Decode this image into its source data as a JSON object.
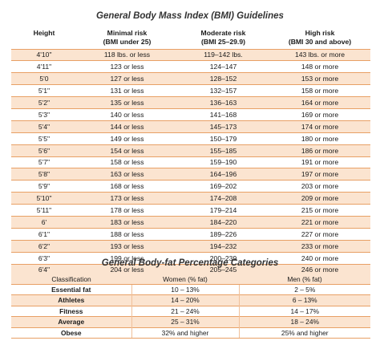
{
  "bmi": {
    "title": "General Body Mass Index (BMI) Guidelines",
    "headers": {
      "height": "Height",
      "minimal": [
        "Minimal risk",
        "(BMI under 25)"
      ],
      "moderate": [
        "Moderate risk",
        "(BMI 25–29.9)"
      ],
      "high": [
        "High risk",
        "(BMI 30 and above)"
      ]
    },
    "rows": [
      {
        "height": "4'10\"",
        "minimal": "118 lbs. or less",
        "moderate": "119–142 lbs.",
        "high": "143 lbs. or more"
      },
      {
        "height": "4'11\"",
        "minimal": "123 or less",
        "moderate": "124–147",
        "high": "148 or more"
      },
      {
        "height": "5'0",
        "minimal": "127 or less",
        "moderate": "128–152",
        "high": "153 or more"
      },
      {
        "height": "5'1\"",
        "minimal": "131 or less",
        "moderate": "132–157",
        "high": "158 or more"
      },
      {
        "height": "5'2\"",
        "minimal": "135 or less",
        "moderate": "136–163",
        "high": "164 or more"
      },
      {
        "height": "5'3\"",
        "minimal": "140 or less",
        "moderate": "141–168",
        "high": "169 or more"
      },
      {
        "height": "5'4\"",
        "minimal": "144 or less",
        "moderate": "145–173",
        "high": "174 or more"
      },
      {
        "height": "5'5\"",
        "minimal": "149 or less",
        "moderate": "150–179",
        "high": "180 or more"
      },
      {
        "height": "5'6\"",
        "minimal": "154 or less",
        "moderate": "155–185",
        "high": "186 or more"
      },
      {
        "height": "5'7\"",
        "minimal": "158 or less",
        "moderate": "159–190",
        "high": "191 or more"
      },
      {
        "height": "5'8\"",
        "minimal": "163 or less",
        "moderate": "164–196",
        "high": "197 or more"
      },
      {
        "height": "5'9\"",
        "minimal": "168 or less",
        "moderate": "169–202",
        "high": "203 or more"
      },
      {
        "height": "5'10\"",
        "minimal": "173 or less",
        "moderate": "174–208",
        "high": "209 or more"
      },
      {
        "height": "5'11\"",
        "minimal": "178 or less",
        "moderate": "179–214",
        "high": "215 or more"
      },
      {
        "height": "6'",
        "minimal": "183 or less",
        "moderate": "184–220",
        "high": "221 or more"
      },
      {
        "height": "6'1\"",
        "minimal": "188 or less",
        "moderate": "189–226",
        "high": "227 or more"
      },
      {
        "height": "6'2\"",
        "minimal": "193 or less",
        "moderate": "194–232",
        "high": "233 or more"
      },
      {
        "height": "6'3\"",
        "minimal": "199 or less",
        "moderate": "200–239",
        "high": "240 or more"
      },
      {
        "height": "6'4\"",
        "minimal": "204 or less",
        "moderate": "205–245",
        "high": "246 or more"
      }
    ]
  },
  "fat": {
    "title": "General Body-fat Percentage Categories",
    "headers": {
      "classification": "Classification",
      "women": "Women (% fat)",
      "men": "Men (% fat)"
    },
    "rows": [
      {
        "classification": "Essential fat",
        "women": "10 – 13%",
        "men": "2 – 5%"
      },
      {
        "classification": "Athletes",
        "women": "14 – 20%",
        "men": "6 – 13%"
      },
      {
        "classification": "Fitness",
        "women": "21 – 24%",
        "men": "14 – 17%"
      },
      {
        "classification": "Average",
        "women": "25 – 31%",
        "men": "18 – 24%"
      },
      {
        "classification": "Obese",
        "women": "32% and higher",
        "men": "25% and higher"
      }
    ]
  },
  "colors": {
    "accent_border": "#e8a065",
    "stripe": "#fbe4d0"
  }
}
